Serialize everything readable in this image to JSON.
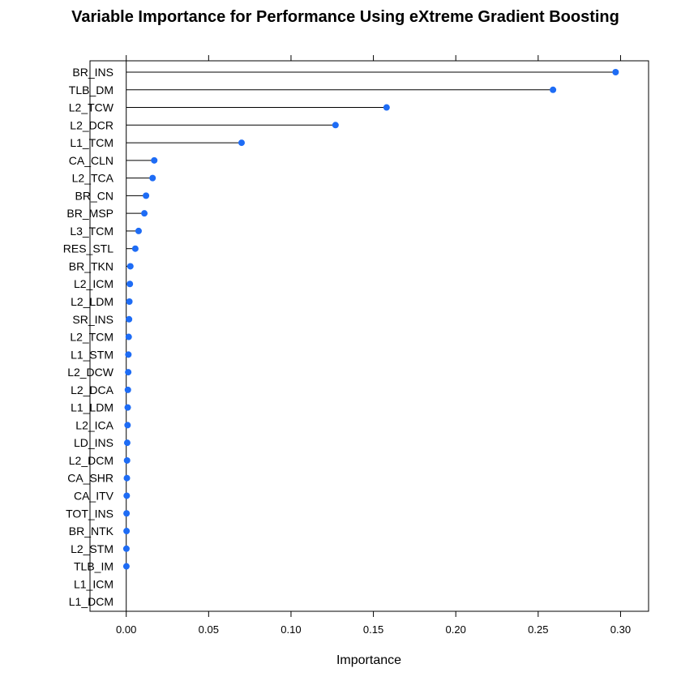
{
  "chart_data": {
    "type": "dot",
    "title": "Variable Importance for Performance Using eXtreme Gradient Boosting",
    "xlabel": "Importance",
    "ylabel": "",
    "xlim": [
      -0.022,
      0.317
    ],
    "xticks": [
      "0.00",
      "0.05",
      "0.10",
      "0.15",
      "0.20",
      "0.25",
      "0.30"
    ],
    "point_color": "#1e6cf5",
    "categories": [
      "BR_INS",
      "TLB_DM",
      "L2_TCW",
      "L2_DCR",
      "L1_TCM",
      "CA_CLN",
      "L2_TCA",
      "BR_CN",
      "BR_MSP",
      "L3_TCM",
      "RES_STL",
      "BR_TKN",
      "L2_ICM",
      "L2_LDM",
      "SR_INS",
      "L2_TCM",
      "L1_STM",
      "L2_DCW",
      "L2_DCA",
      "L1_LDM",
      "L2_ICA",
      "LD_INS",
      "L2_DCM",
      "CA_SHR",
      "CA_ITV",
      "TOT_INS",
      "BR_NTK",
      "L2_STM",
      "TLB_IM",
      "L1_ICM",
      "L1_DCM"
    ],
    "values": [
      0.297,
      0.259,
      0.158,
      0.127,
      0.07,
      0.017,
      0.016,
      0.012,
      0.011,
      0.0075,
      0.0055,
      0.0025,
      0.0022,
      0.0019,
      0.0017,
      0.0015,
      0.0013,
      0.0012,
      0.001,
      0.0009,
      0.0008,
      0.0006,
      0.0005,
      0.0004,
      0.0003,
      0.0002,
      0.0002,
      0.0001,
      0.0001,
      null,
      null
    ]
  }
}
